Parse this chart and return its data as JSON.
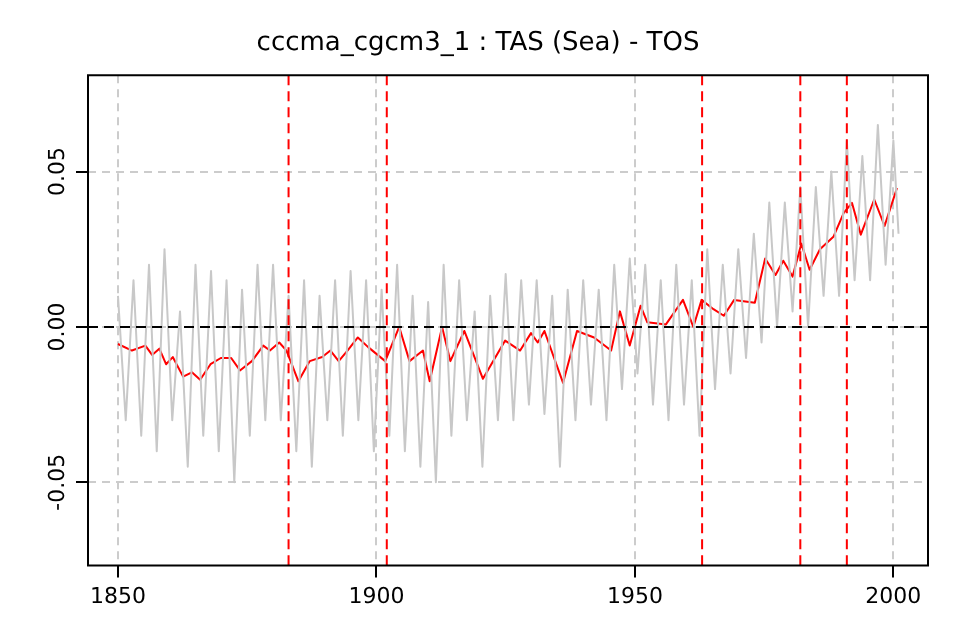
{
  "chart_data": {
    "type": "line",
    "title": "cccma_cgcm3_1 : TAS (Sea) - TOS",
    "xlim": [
      1844.2,
      2006.7
    ],
    "xticks": [
      1850,
      1900,
      1950,
      2000
    ],
    "ylim": [
      -0.0768,
      0.081
    ],
    "yticks": [
      {
        "value": -0.05,
        "label": "-0.05"
      },
      {
        "value": 0,
        "label": "0.00"
      },
      {
        "value": 0.05,
        "label": "0.05"
      }
    ],
    "grid": true,
    "marker": "none",
    "series": [
      {
        "color": "#c8c8c8",
        "x": [
          1850,
          1851.5,
          1853,
          1854.5,
          1856,
          1857.5,
          1859,
          1860.5,
          1862,
          1863.5,
          1865,
          1866.5,
          1868,
          1869.5,
          1871,
          1872.5,
          1874,
          1875.5,
          1877,
          1878.5,
          1880,
          1881.5,
          1883,
          1884.5,
          1886,
          1887.5,
          1889,
          1890.5,
          1892,
          1893.5,
          1895,
          1896.5,
          1898,
          1899.5,
          1901,
          1902.5,
          1904,
          1905.5,
          1907,
          1908.5,
          1910,
          1911.5,
          1913,
          1914.5,
          1916,
          1917.5,
          1919,
          1920.5,
          1922,
          1923.5,
          1925,
          1926.5,
          1928,
          1929.5,
          1931,
          1932.5,
          1934,
          1935.5,
          1937,
          1938.5,
          1940,
          1941.5,
          1943,
          1944.5,
          1946,
          1947.5,
          1949,
          1950.5,
          1952,
          1953.5,
          1955,
          1956.5,
          1958,
          1959.5,
          1961,
          1962.5,
          1964,
          1965.5,
          1967,
          1968.5,
          1970,
          1971.5,
          1973,
          1974.5,
          1976,
          1977.5,
          1979,
          1980.5,
          1982,
          1983.5,
          1985,
          1986.5,
          1988,
          1989.5,
          1991,
          1992.5,
          1994,
          1995.5,
          1997,
          1998.5,
          2000,
          2001
        ],
        "values": [
          0.01,
          -0.03,
          0.015,
          -0.035,
          0.02,
          -0.04,
          0.025,
          -0.03,
          0.005,
          -0.045,
          0.02,
          -0.035,
          0.018,
          -0.04,
          0.015,
          -0.05,
          0.012,
          -0.035,
          0.02,
          -0.03,
          0.02,
          -0.03,
          0.01,
          -0.04,
          0.015,
          -0.045,
          0.01,
          -0.03,
          0.015,
          -0.035,
          0.018,
          -0.03,
          0.015,
          -0.04,
          0.012,
          -0.035,
          0.02,
          -0.04,
          0.01,
          -0.045,
          0.008,
          -0.05,
          0.02,
          -0.035,
          0.015,
          -0.03,
          0.005,
          -0.045,
          0.01,
          -0.03,
          0.017,
          -0.03,
          0.015,
          -0.025,
          0.015,
          -0.028,
          0.01,
          -0.045,
          0.012,
          -0.03,
          0.015,
          -0.025,
          0.012,
          -0.03,
          0.02,
          -0.02,
          0.022,
          -0.015,
          0.02,
          -0.025,
          0.015,
          -0.03,
          0.02,
          -0.025,
          0.015,
          -0.035,
          0.025,
          -0.02,
          0.02,
          -0.015,
          0.025,
          -0.01,
          0.03,
          -0.005,
          0.04,
          0.0,
          0.04,
          0.005,
          0.045,
          0.0,
          0.045,
          0.01,
          0.05,
          0.01,
          0.06,
          0.015,
          0.055,
          0.015,
          0.065,
          0.02,
          0.06,
          0.03
        ]
      },
      {
        "color": "#ff0000",
        "x": [
          1850,
          1852.7,
          1855.3,
          1856.6,
          1858,
          1859.3,
          1860.6,
          1862.6,
          1864.3,
          1865.9,
          1867.9,
          1869.9,
          1871.9,
          1873.6,
          1875.9,
          1878.1,
          1879.4,
          1881.2,
          1882.6,
          1884.9,
          1887.1,
          1889.5,
          1891.1,
          1892.7,
          1894.4,
          1896.4,
          1898.4,
          1901.7,
          1904.4,
          1906.4,
          1909,
          1910.3,
          1912.7,
          1914.3,
          1917,
          1920.6,
          1924.9,
          1927.8,
          1929.9,
          1931.2,
          1932.5,
          1936.1,
          1938.8,
          1942.1,
          1945.4,
          1947.1,
          1949,
          1951.1,
          1952.4,
          1956,
          1959.3,
          1961.3,
          1962.9,
          1965.2,
          1967.2,
          1969.2,
          1973.2,
          1975.2,
          1977.2,
          1978.7,
          1980.5,
          1982.2,
          1983.8,
          1985.8,
          1988.4,
          1990.4,
          1992,
          1993.7,
          1996.3,
          1998.3,
          2000.7
        ],
        "values": [
          -0.0055,
          -0.0076,
          -0.006,
          -0.009,
          -0.007,
          -0.012,
          -0.0097,
          -0.016,
          -0.0146,
          -0.017,
          -0.012,
          -0.01,
          -0.01,
          -0.014,
          -0.011,
          -0.006,
          -0.0076,
          -0.005,
          -0.0076,
          -0.0175,
          -0.011,
          -0.0097,
          -0.0076,
          -0.011,
          -0.0076,
          -0.0034,
          -0.0065,
          -0.011,
          0.0,
          -0.011,
          -0.0076,
          -0.0175,
          0.0,
          -0.011,
          -0.0013,
          -0.0167,
          -0.0044,
          -0.0076,
          -0.002,
          -0.005,
          -0.0013,
          -0.018,
          -0.0013,
          -0.0034,
          -0.0076,
          0.005,
          -0.006,
          0.0068,
          0.0015,
          0.0008,
          0.0087,
          0.0,
          0.0087,
          0.0057,
          0.0036,
          0.0087,
          0.0078,
          0.022,
          0.0167,
          0.0213,
          0.0162,
          0.0268,
          0.0184,
          0.025,
          0.029,
          0.0367,
          0.0399,
          0.0297,
          0.041,
          0.0325,
          0.0447
        ]
      }
    ],
    "ref_lines": [
      {
        "axis": "y",
        "value": 0,
        "color": "#000000",
        "line_style": "dashed"
      },
      {
        "axis": "x",
        "value": 1883,
        "color": "#ff0000",
        "line_style": "dashed"
      },
      {
        "axis": "x",
        "value": 1902,
        "color": "#ff0000",
        "line_style": "dashed"
      },
      {
        "axis": "x",
        "value": 1963,
        "color": "#ff0000",
        "line_style": "dashed"
      },
      {
        "axis": "x",
        "value": 1982,
        "color": "#ff0000",
        "line_style": "dashed"
      },
      {
        "axis": "x",
        "value": 1991,
        "color": "#ff0000",
        "line_style": "dashed"
      }
    ]
  }
}
